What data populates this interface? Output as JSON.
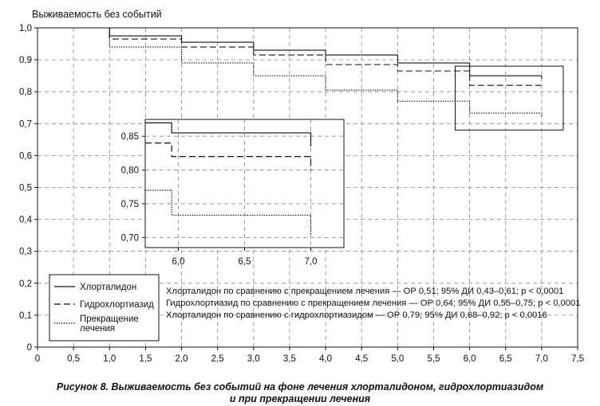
{
  "chart_data": {
    "type": "line",
    "ylabel": "Выживаемость без событий",
    "xlim": [
      0,
      7.5
    ],
    "ylim": [
      0,
      1.0
    ],
    "xticks": [
      "0",
      "0,5",
      "1,0",
      "1,5",
      "2,0",
      "2,5",
      "3,0",
      "3,5",
      "4,0",
      "4,5",
      "5,0",
      "5,5",
      "6,0",
      "6,5",
      "7,0",
      "7,5"
    ],
    "yticks": [
      "0",
      "0,1",
      "0,2",
      "0,3",
      "0,4",
      "0,5",
      "0,6",
      "0,7",
      "0,8",
      "0,9",
      "1,0"
    ],
    "grid": true,
    "legend_position": "bottom-left",
    "series": [
      {
        "name": "Хлорталидон",
        "style": "solid",
        "steps": [
          [
            0,
            1.0
          ],
          [
            1.0,
            0.975
          ],
          [
            2.0,
            0.955
          ],
          [
            3.0,
            0.93
          ],
          [
            4.0,
            0.915
          ],
          [
            5.0,
            0.89
          ],
          [
            6.0,
            0.85
          ],
          [
            6.0,
            0.85
          ],
          [
            7.0,
            0.84
          ]
        ]
      },
      {
        "name": "Гидрохлортиазид",
        "style": "dashed",
        "steps": [
          [
            0,
            1.0
          ],
          [
            1.0,
            0.965
          ],
          [
            2.0,
            0.94
          ],
          [
            3.0,
            0.915
          ],
          [
            4.0,
            0.885
          ],
          [
            5.0,
            0.865
          ],
          [
            6.0,
            0.82
          ],
          [
            7.0,
            0.81
          ]
        ]
      },
      {
        "name": "Прекращение лечения",
        "style": "dotted",
        "steps": [
          [
            0,
            1.0
          ],
          [
            1.0,
            0.94
          ],
          [
            2.0,
            0.89
          ],
          [
            3.0,
            0.85
          ],
          [
            4.0,
            0.805
          ],
          [
            5.0,
            0.77
          ],
          [
            6.0,
            0.733
          ],
          [
            7.0,
            0.72
          ]
        ]
      }
    ],
    "inset": {
      "xlim": [
        5.75,
        7.25
      ],
      "ylim": [
        0.685,
        0.875
      ],
      "xticks": [
        "6,0",
        "6,5",
        "7,0"
      ],
      "yticks": [
        "0,70",
        "0,75",
        "0,80",
        "0,85"
      ],
      "highlight_region": {
        "x": [
          5.8,
          7.3
        ],
        "y": [
          0.68,
          0.88
        ]
      },
      "series": [
        {
          "name": "Хлорталидон",
          "style": "solid",
          "steps": [
            [
              5.75,
              0.87
            ],
            [
              5.95,
              0.855
            ],
            [
              7.0,
              0.855
            ],
            [
              7.0,
              0.835
            ]
          ]
        },
        {
          "name": "Гидрохлортиазид",
          "style": "dashed",
          "steps": [
            [
              5.75,
              0.84
            ],
            [
              5.95,
              0.82
            ],
            [
              7.0,
              0.82
            ],
            [
              7.0,
              0.8
            ]
          ]
        },
        {
          "name": "Прекращение лечения",
          "style": "dotted",
          "steps": [
            [
              5.75,
              0.77
            ],
            [
              5.95,
              0.733
            ],
            [
              7.0,
              0.733
            ],
            [
              7.0,
              0.705
            ]
          ]
        }
      ]
    },
    "legend": [
      "Хлорталидон",
      "Гидрохлортиазид",
      "Прекращение лечения"
    ],
    "annotations": [
      "Хлорталидон по сравнению с прекращением лечения — ОР 0,51; 95% ДИ 0,43–0,61; p < 0,0001",
      "Гидрохлортиазид по сравнению с прекращением лечения — ОР 0,64; 95% ДИ 0,55–0,75; p < 0,0001",
      "Хлорталидон по сравнению с гидрохлортиазидом — ОР 0,79; 95% ДИ 0,68–0,92; p < 0,0016"
    ]
  },
  "legend_labels": {
    "l1": "Хлорталидон",
    "l2": "Гидрохлортиазид",
    "l3a": "Прекращение",
    "l3b": "лечения"
  },
  "caption": {
    "line1": "Рисунок 8.  Выживаемость без событий на фоне лечения хлорталидоном, гидрохлортиазидом",
    "line2": "и при прекращении лечения"
  }
}
